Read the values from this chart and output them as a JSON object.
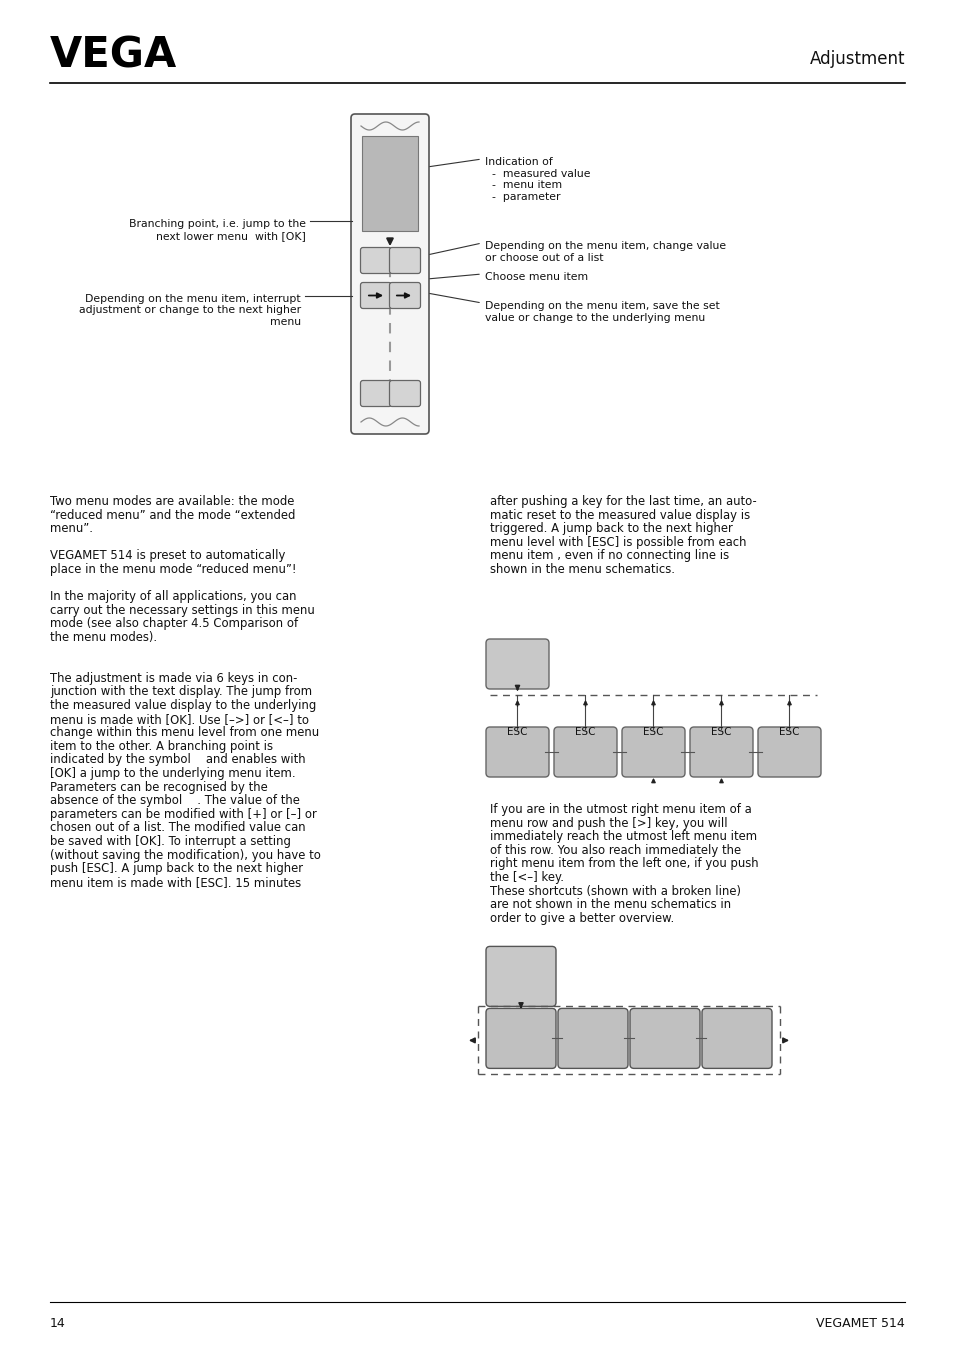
{
  "page_num": "14",
  "product": "VEGAMET 514",
  "header_title": "Adjustment",
  "bg_color": "#ffffff",
  "text_color": "#111111",
  "annot_top_right": "Indication of\n  -  measured value\n  -  menu item\n  -  parameter",
  "annot_mid_right1": "Depending on the menu item, change value\nor choose out of a list",
  "annot_mid_right2": "Choose menu item",
  "annot_bot_right": "Depending on the menu item, save the set\nvalue or change to the underlying menu",
  "annot_left_top": "Branching point, i.e. jump to the\nnext lower menu  with [OK]",
  "annot_left_bot": "Depending on the menu item, interrupt\nadjustment or change to the next higher\nmenu",
  "left_col_text": [
    "Two menu modes are available: the mode",
    "“reduced menu” and the mode “extended",
    "menu”.",
    "",
    "VEGAMET 514 is preset to automatically",
    "place in the menu mode “reduced menu”!",
    "",
    "In the majority of all applications, you can",
    "carry out the necessary settings in this menu",
    "mode (see also chapter 4.5 Comparison of",
    "the menu modes).",
    "",
    "",
    "The adjustment is made via 6 keys in con-",
    "junction with the text display. The jump from",
    "the measured value display to the underlying",
    "menu is made with [OK]. Use [–>] or [<–] to",
    "change within this menu level from one menu",
    "item to the other. A branching point is",
    "indicated by the symbol    and enables with",
    "[OK] a jump to the underlying menu item.",
    "Parameters can be recognised by the",
    "absence of the symbol    . The value of the",
    "parameters can be modified with [+] or [–] or",
    "chosen out of a list. The modified value can",
    "be saved with [OK]. To interrupt a setting",
    "(without saving the modification), you have to",
    "push [ESC]. A jump back to the next higher",
    "menu item is made with [ESC]. 15 minutes"
  ],
  "right_col_text1": [
    "after pushing a key for the last time, an auto-",
    "matic reset to the measured value display is",
    "triggered. A jump back to the next higher",
    "menu level with [ESC] is possible from each",
    "menu item , even if no connecting line is",
    "shown in the menu schematics."
  ],
  "right_col_text2": [
    "If you are in the utmost right menu item of a",
    "menu row and push the [>] key, you will",
    "immediately reach the utmost left menu item",
    "of this row. You also reach immediately the",
    "right menu item from the left one, if you push",
    "the [<–] key.",
    "These shortcuts (shown with a broken line)",
    "are not shown in the menu schematics in",
    "order to give a better overview."
  ]
}
